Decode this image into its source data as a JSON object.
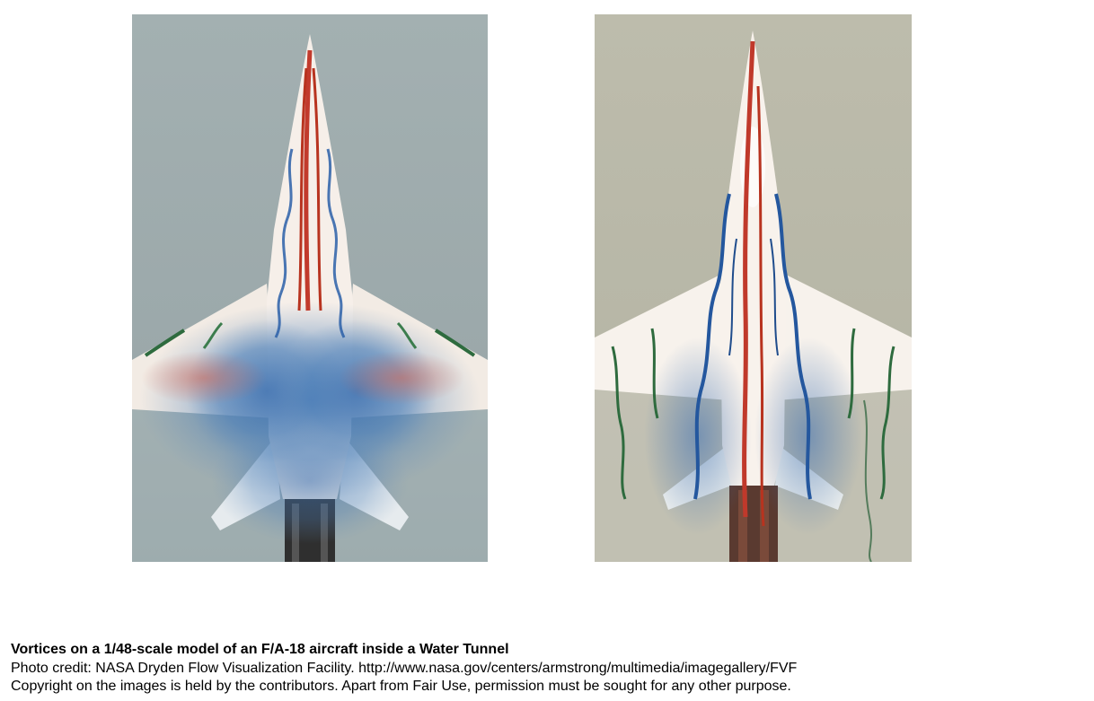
{
  "caption": {
    "title": "Vortices on a 1/48-scale model of an F/A-18 aircraft inside a Water Tunnel",
    "credit": "Photo credit: NASA Dryden Flow Visualization Facility. http://www.nasa.gov/centers/armstrong/multimedia/imagegallery/FVF",
    "copyright": "Copyright on the images is held by the contributors. Apart from Fair Use, permission must be sought for any other purpose."
  },
  "colors": {
    "left_background": "#9aa9ab",
    "right_background": "#b9b8a8",
    "dye_red": "#c0392b",
    "dye_blue": "#2a5fa8",
    "dye_green": "#2e6b3e",
    "model_body": "#f4ede6"
  }
}
